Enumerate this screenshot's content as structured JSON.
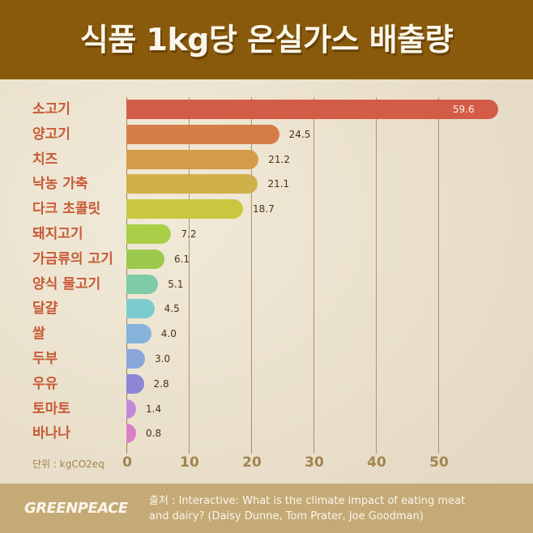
{
  "title": "식품 1kg당 온실가스 배출량",
  "chart_data": {
    "type": "bar",
    "orientation": "horizontal",
    "title": "식품 1kg당 온실가스 배출량",
    "xlabel": "",
    "ylabel": "",
    "unit_label": "단위 : kgCO2eq",
    "xlim": [
      0,
      60
    ],
    "x_ticks": [
      "0",
      "10",
      "20",
      "30",
      "40",
      "50"
    ],
    "grid": true,
    "categories": [
      "소고기",
      "양고기",
      "치즈",
      "낙농 가축",
      "다크 초콜릿",
      "돼지고기",
      "가금류의 고기",
      "양식 물고기",
      "달걀",
      "쌀",
      "두부",
      "우유",
      "토마토",
      "바나나"
    ],
    "values": [
      59.6,
      24.5,
      21.2,
      21.1,
      18.7,
      7.2,
      6.1,
      5.1,
      4.5,
      4.0,
      3.0,
      2.8,
      1.4,
      0.8
    ],
    "value_labels": [
      "59.6",
      "24.5",
      "21.2",
      "21.1",
      "18.7",
      "7.2",
      "6.1",
      "5.1",
      "4.5",
      "4.0",
      "3.0",
      "2.8",
      "1.4",
      "0.8"
    ],
    "colors": [
      "#d35c47",
      "#d47e45",
      "#d49b48",
      "#d0b049",
      "#c9c73f",
      "#a9cf49",
      "#9cc94d",
      "#7ecaa6",
      "#7ccbce",
      "#86b3da",
      "#89a6d8",
      "#8a86d4",
      "#c18ad6",
      "#d980c4"
    ]
  },
  "footer": {
    "logo": "GREENPEACE",
    "source_line1": "출처 : Interactive: What is the climate impact of eating meat",
    "source_line2": "and dairy? (Daisy Dunne, Tom Prater, Joe Goodman)"
  }
}
